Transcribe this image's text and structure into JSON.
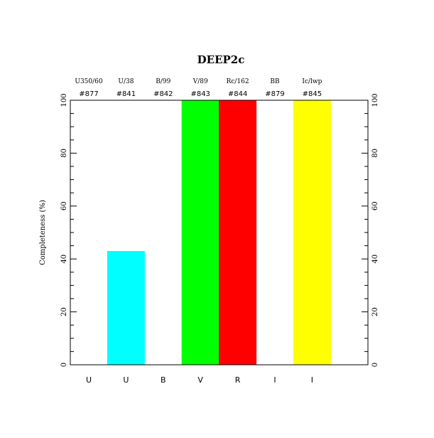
{
  "chart_data": {
    "type": "bar",
    "title": "DEEP2c",
    "xlabel": "",
    "ylabel": "Completeness (%)",
    "ylim": [
      0,
      100
    ],
    "yticks": [
      "0",
      "20",
      "40",
      "60",
      "80",
      "100"
    ],
    "categories": [
      "U",
      "U",
      "B",
      "V",
      "R",
      "I",
      "I"
    ],
    "filters": [
      "U350/60",
      "U/38",
      "B/99",
      "V/89",
      "Rc/162",
      "BB",
      "Ic/lwp"
    ],
    "ids": [
      "#877",
      "#841",
      "#842",
      "#843",
      "#844",
      "#879",
      "#845"
    ],
    "values": [
      0,
      43,
      0,
      100,
      100,
      0,
      100
    ],
    "colors": [
      "#00ffff",
      "#00ffff",
      "#0000ff",
      "#00ff00",
      "#ff0000",
      "#ffff00",
      "#ffff00"
    ]
  }
}
